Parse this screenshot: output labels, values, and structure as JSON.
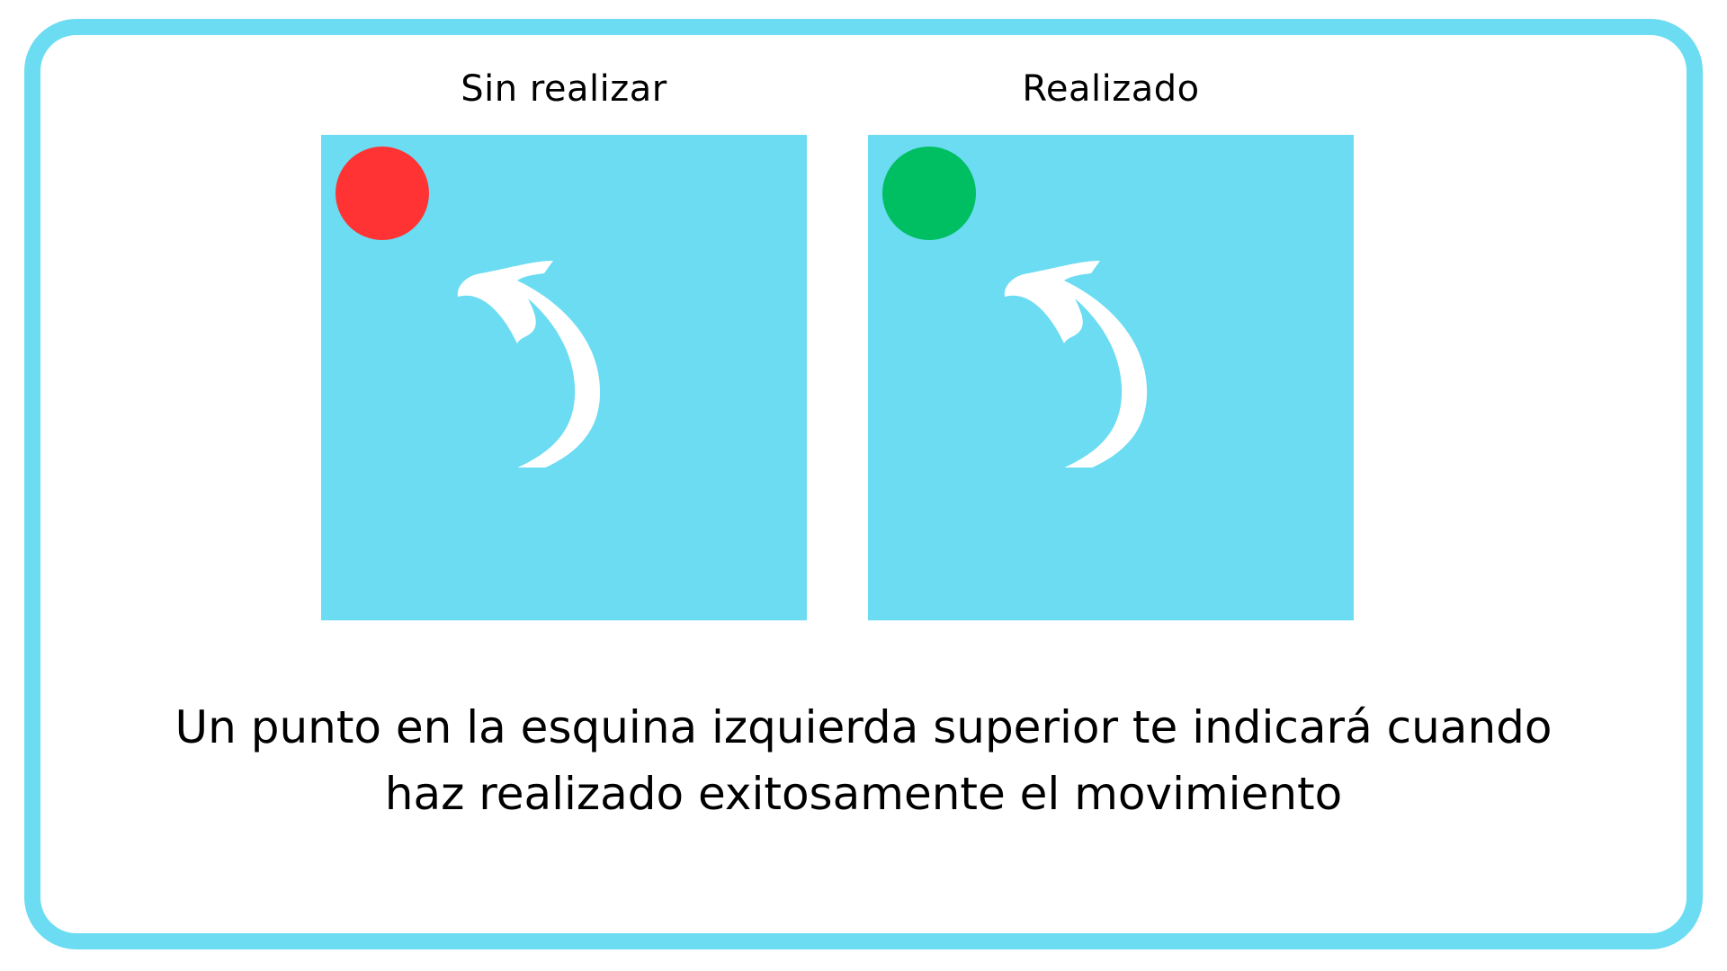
{
  "colors": {
    "frame_border": "#6bdcf2",
    "panel_fill": "#6bdcf2",
    "dot_not_done": "#ff3333",
    "dot_done": "#00bf63",
    "arrow": "#ffffff",
    "text": "#000000"
  },
  "panels": [
    {
      "title": "Sin realizar",
      "dot_color": "#ff3333",
      "arrow_icon": "curved-arrow-up-left-icon"
    },
    {
      "title": "Realizado",
      "dot_color": "#00bf63",
      "arrow_icon": "curved-arrow-up-left-icon"
    }
  ],
  "caption": {
    "line1": "Un punto en la esquina izquierda superior te indicará cuando",
    "line2": "haz realizado exitosamente el movimiento"
  }
}
